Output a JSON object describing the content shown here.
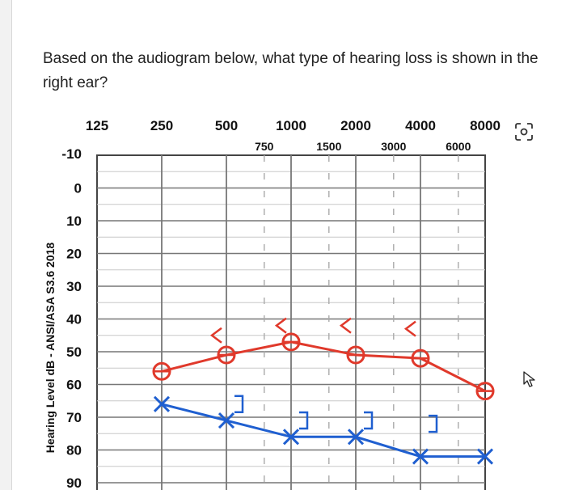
{
  "question": {
    "text": "Based on the audiogram below, what type of hearing loss is shown in the right ear?"
  },
  "icons": {
    "zoom": "zoom-icon",
    "cursor": "cursor-arrow-icon"
  },
  "colors": {
    "right_ear": "#e0392b",
    "left_ear": "#1f5fd0",
    "grid": "#777777",
    "grid_dashed": "#aaaaaa"
  },
  "chart_data": {
    "type": "line",
    "ylabel": "Hearing Level dB - ANSI/ASA S3.6 2018",
    "xlabel": "",
    "title": "",
    "x_octave_ticks": [
      "125",
      "250",
      "500",
      "1000",
      "2000",
      "4000",
      "8000"
    ],
    "x_mid_ticks": [
      "750",
      "1500",
      "3000",
      "6000"
    ],
    "y_ticks": [
      "-10",
      "0",
      "10",
      "20",
      "30",
      "40",
      "50",
      "60",
      "70",
      "80",
      "90"
    ],
    "ylim": [
      -10,
      90
    ],
    "y_inverted": true,
    "series": [
      {
        "symbol": "O",
        "color": "#e0392b",
        "x": [
          250,
          500,
          1000,
          2000,
          4000,
          8000
        ],
        "y": [
          56,
          51,
          47,
          51,
          52,
          62
        ]
      },
      {
        "symbol": "X",
        "color": "#1f5fd0",
        "x": [
          250,
          500,
          1000,
          2000,
          4000,
          8000
        ],
        "y": [
          66,
          71,
          76,
          76,
          82,
          82
        ]
      },
      {
        "symbol": "<",
        "color": "#e0392b",
        "x": [
          500,
          1000,
          2000,
          4000
        ],
        "y": [
          45,
          42,
          42,
          43
        ]
      },
      {
        "symbol": "]",
        "color": "#1f5fd0",
        "x": [
          500,
          1000,
          2000,
          4000
        ],
        "y": [
          66,
          71,
          71,
          72
        ]
      }
    ]
  }
}
